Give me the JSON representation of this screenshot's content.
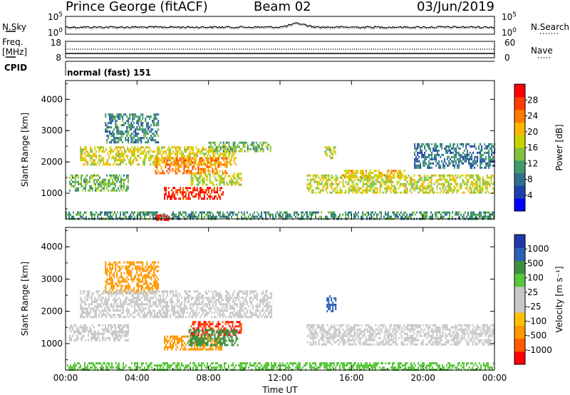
{
  "header": {
    "station": "Prince George (fitACF)",
    "beam": "Beam 02",
    "date": "03/Jun/2019"
  },
  "strips": {
    "nsky_label": "N.Sky",
    "nsearch_label": "N.Search",
    "freq_label_1": "Freq.",
    "freq_label_2": "[MHz]",
    "nave_label": "Nave",
    "cpid_label": "CPID",
    "cpid_value": "normal (fast) 151",
    "noise_left_ticks": [
      "10^5",
      "10^0"
    ],
    "noise_right_ticks": [
      "10^5",
      "10^0"
    ],
    "freq_left_ticks": [
      "18",
      "8"
    ],
    "nave_right_ticks": [
      "60",
      "0"
    ]
  },
  "colors": {
    "power_scale": [
      "#0000ff",
      "#1f3fae",
      "#2e6e8e",
      "#3f9a6a",
      "#7fc241",
      "#c8d400",
      "#ffb400",
      "#ff7a00",
      "#ff3d00",
      "#ff0000"
    ],
    "velocity_scale": [
      "#ff0000",
      "#ff5a00",
      "#ff9800",
      "#ffc000",
      "#c8c8c8",
      "#c8c8c8",
      "#58c63a",
      "#3e8f3e",
      "#2a62b8",
      "#1f3aa8"
    ]
  },
  "chart_data": [
    {
      "type": "heatmap",
      "name": "power",
      "xlabel": "",
      "ylabel": "Slant Range [km]",
      "x_ticks": [
        "00:00",
        "04:00",
        "08:00",
        "12:00",
        "16:00",
        "20:00",
        "00:00"
      ],
      "y_ticks": [
        "1000",
        "2000",
        "3000",
        "4000"
      ],
      "xlim_hours": [
        0,
        24
      ],
      "ylim_km": [
        180,
        4600
      ],
      "colorbar": {
        "label": "Power [dB]",
        "ticks": [
          "4",
          "8",
          "12",
          "16",
          "20",
          "24",
          "28"
        ],
        "range": [
          0,
          30
        ]
      },
      "regions": [
        {
          "t0": 2.2,
          "t1": 5.2,
          "r0": 2600,
          "r1": 3550,
          "level": 9
        },
        {
          "t0": 0.8,
          "t1": 9.5,
          "r0": 1900,
          "r1": 2500,
          "level": 17
        },
        {
          "t0": 5.0,
          "t1": 9.0,
          "r0": 1650,
          "r1": 2150,
          "level": 22
        },
        {
          "t0": 0.2,
          "t1": 3.5,
          "r0": 1100,
          "r1": 1600,
          "level": 12
        },
        {
          "t0": 7.0,
          "t1": 9.8,
          "r0": 1250,
          "r1": 1650,
          "level": 16
        },
        {
          "t0": 5.5,
          "t1": 8.8,
          "r0": 800,
          "r1": 1200,
          "level": 27
        },
        {
          "t0": 8.0,
          "t1": 11.5,
          "r0": 2350,
          "r1": 2650,
          "level": 12
        },
        {
          "t0": 13.5,
          "t1": 24.0,
          "r0": 1000,
          "r1": 1600,
          "level": 16
        },
        {
          "t0": 15.5,
          "t1": 19.0,
          "r0": 1500,
          "r1": 1750,
          "level": 19
        },
        {
          "t0": 14.5,
          "t1": 15.1,
          "r0": 2100,
          "r1": 2500,
          "level": 15
        },
        {
          "t0": 19.5,
          "t1": 24.0,
          "r0": 1800,
          "r1": 2600,
          "level": 8
        },
        {
          "t0": 0.0,
          "t1": 24.0,
          "r0": 180,
          "r1": 420,
          "level": 10
        },
        {
          "t0": 5.0,
          "t1": 5.8,
          "r0": 180,
          "r1": 320,
          "level": 28
        }
      ]
    },
    {
      "type": "heatmap",
      "name": "velocity",
      "xlabel": "Time UT",
      "ylabel": "Slant Range [km]",
      "x_ticks": [
        "00:00",
        "04:00",
        "08:00",
        "12:00",
        "16:00",
        "20:00",
        "00:00"
      ],
      "y_ticks": [
        "1000",
        "2000",
        "3000",
        "4000"
      ],
      "xlim_hours": [
        0,
        24
      ],
      "ylim_km": [
        180,
        4600
      ],
      "colorbar": {
        "label": "Velocity [m s⁻¹]",
        "ticks": [
          "-1000",
          "-500",
          "-100",
          "-25",
          "25",
          "100",
          "500",
          "1000"
        ]
      },
      "regions": [
        {
          "t0": 2.2,
          "t1": 5.2,
          "r0": 2600,
          "r1": 3550,
          "level": -150
        },
        {
          "t0": 0.8,
          "t1": 11.5,
          "r0": 1800,
          "r1": 2650,
          "level": 0
        },
        {
          "t0": 0.2,
          "t1": 3.5,
          "r0": 1100,
          "r1": 1600,
          "level": 0
        },
        {
          "t0": 7.0,
          "t1": 9.8,
          "r0": 1250,
          "r1": 1700,
          "level": -1000
        },
        {
          "t0": 5.5,
          "t1": 8.8,
          "r0": 800,
          "r1": 1250,
          "level": -300
        },
        {
          "t0": 6.8,
          "t1": 9.6,
          "r0": 950,
          "r1": 1450,
          "level": 150
        },
        {
          "t0": 14.6,
          "t1": 15.1,
          "r0": 2000,
          "r1": 2500,
          "level": 800
        },
        {
          "t0": 13.5,
          "t1": 24.0,
          "r0": 1000,
          "r1": 1600,
          "level": 0
        },
        {
          "t0": 0.0,
          "t1": 24.0,
          "r0": 180,
          "r1": 420,
          "level": 60
        }
      ]
    }
  ]
}
